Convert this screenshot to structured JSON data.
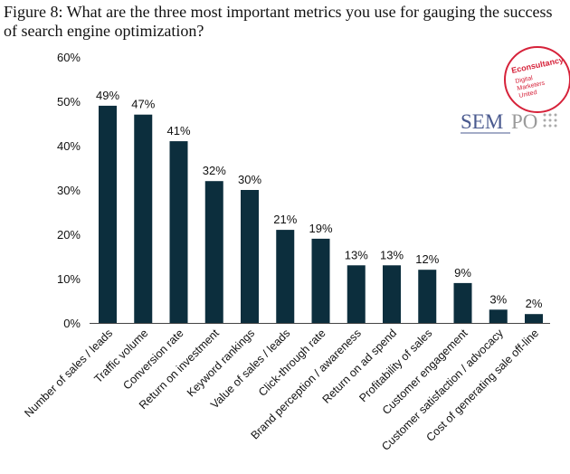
{
  "chart_data": {
    "type": "bar",
    "title": "Figure 8: What are the three most important metrics you use for gauging the success of search engine optimization?",
    "xlabel": "",
    "ylabel": "",
    "ylim": [
      0,
      60
    ],
    "yticks": [
      "0%",
      "10%",
      "20%",
      "30%",
      "40%",
      "50%",
      "60%"
    ],
    "grid": false,
    "categories": [
      "Number of sales / leads",
      "Traffic volume",
      "Conversion rate",
      "Return on investment",
      "Keyword rankings",
      "Value of sales / leads",
      "Click-through rate",
      "Brand perception / awareness",
      "Return on ad spend",
      "Profitability of sales",
      "Customer engagement",
      "Customer satisfaction / advocacy",
      "Cost of generating sale off-line"
    ],
    "values": [
      49,
      47,
      41,
      32,
      30,
      21,
      19,
      13,
      13,
      12,
      9,
      3,
      2
    ],
    "labels": [
      "49%",
      "47%",
      "41%",
      "32%",
      "30%",
      "21%",
      "19%",
      "13%",
      "13%",
      "12%",
      "9%",
      "3%",
      "2%"
    ],
    "bar_color": "#0c2e3d"
  },
  "logos": {
    "econsultancy": "Econsultancy Digital Marketers United",
    "sempo": "SEMPO"
  }
}
